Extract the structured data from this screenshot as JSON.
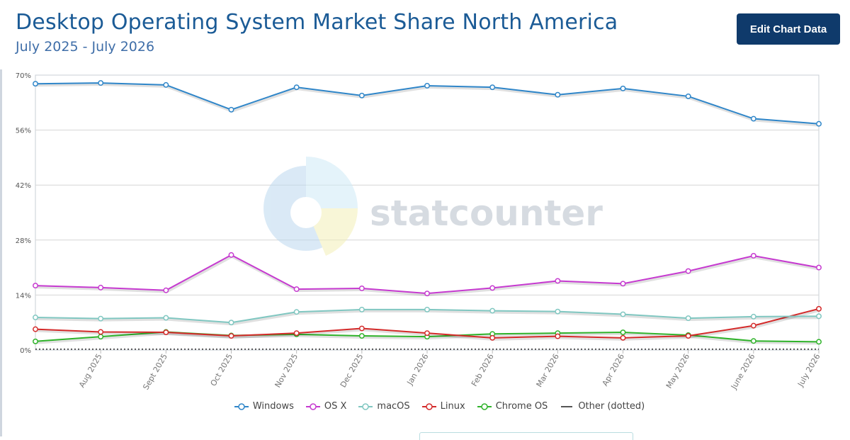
{
  "header": {
    "title": "Desktop Operating System Market Share North America",
    "subtitle": "July 2025 - July 2026",
    "edit_button_label": "Edit Chart Data"
  },
  "watermark": {
    "text": "statcounter"
  },
  "chart_data": {
    "type": "line",
    "categories": [
      "July 2025",
      "Aug 2025",
      "Sept 2025",
      "Oct 2025",
      "Nov 2025",
      "Dec 2025",
      "Jan 2026",
      "Feb 2026",
      "Mar 2026",
      "Apr 2026",
      "May 2026",
      "June 2026",
      "July 2026"
    ],
    "x_tick_labels": [
      "Aug 2025",
      "Sept 2025",
      "Oct 2025",
      "Nov 2025",
      "Dec 2025",
      "Jan 2026",
      "Feb 2026",
      "Mar 2026",
      "Apr 2026",
      "May 2026",
      "June 2026",
      "July 2026"
    ],
    "y_ticks": [
      "0%",
      "14%",
      "28%",
      "42%",
      "56%",
      "70%"
    ],
    "ylim": [
      0,
      70
    ],
    "grid": true,
    "legend_position": "bottom",
    "series": [
      {
        "name": "Windows",
        "color": "#2f86c9",
        "values": [
          67.8,
          68.0,
          67.5,
          61.2,
          66.9,
          64.8,
          67.3,
          66.9,
          65.0,
          66.6,
          64.6,
          58.9,
          57.6
        ]
      },
      {
        "name": "OS X",
        "color": "#c63ad0",
        "values": [
          16.4,
          15.9,
          15.2,
          24.2,
          15.5,
          15.7,
          14.4,
          15.8,
          17.6,
          16.9,
          20.1,
          24.0,
          21.0
        ]
      },
      {
        "name": "macOS",
        "color": "#80c7c1",
        "values": [
          8.3,
          8.0,
          8.2,
          7.0,
          9.7,
          10.3,
          10.3,
          10.0,
          9.8,
          9.1,
          8.1,
          8.5,
          8.6
        ]
      },
      {
        "name": "Linux",
        "color": "#d42a2a",
        "values": [
          5.3,
          4.6,
          4.5,
          3.6,
          4.3,
          5.5,
          4.3,
          3.1,
          3.5,
          3.1,
          3.6,
          6.2,
          10.5
        ]
      },
      {
        "name": "Chrome OS",
        "color": "#2fb32a",
        "values": [
          2.2,
          3.4,
          4.6,
          3.7,
          4.0,
          3.6,
          3.4,
          4.1,
          4.3,
          4.5,
          3.8,
          2.3,
          2.1
        ]
      },
      {
        "name": "Other (dotted)",
        "color": "#555555",
        "values": [
          0.2,
          0.2,
          0.2,
          0.2,
          0.2,
          0.2,
          0.2,
          0.2,
          0.2,
          0.2,
          0.2,
          0.2,
          0.2
        ]
      }
    ]
  }
}
